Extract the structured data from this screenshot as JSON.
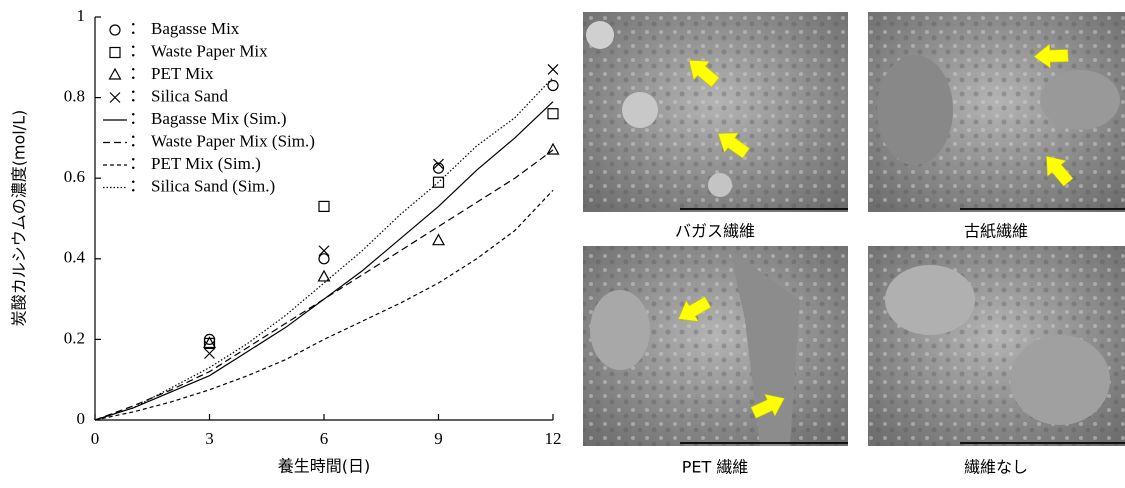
{
  "chart_data": {
    "type": "line",
    "ylabel": "炭酸カルシウムの濃度(mol/L)",
    "xlabel": "養生時間(日)",
    "xlim": [
      0,
      12
    ],
    "xticks": [
      0,
      3,
      6,
      9,
      12
    ],
    "ylim": [
      0,
      1
    ],
    "yticks": [
      0,
      0.2,
      0.4,
      0.6,
      0.8,
      1
    ],
    "legend": "upper left",
    "legend_separator": "：",
    "series": [
      {
        "name": "Bagasse Mix",
        "type": "scatter",
        "marker": "circle",
        "color": "#000000",
        "x": [
          3,
          6,
          9,
          12
        ],
        "values": [
          0.2,
          0.4,
          0.625,
          0.83
        ]
      },
      {
        "name": "Waste Paper Mix",
        "type": "scatter",
        "marker": "square",
        "color": "#000000",
        "x": [
          3,
          6,
          9,
          12
        ],
        "values": [
          0.19,
          0.53,
          0.59,
          0.76
        ]
      },
      {
        "name": "PET Mix",
        "type": "scatter",
        "marker": "triangle",
        "color": "#000000",
        "x": [
          3,
          6,
          9,
          12
        ],
        "values": [
          0.19,
          0.355,
          0.445,
          0.67
        ]
      },
      {
        "name": "Silica Sand",
        "type": "scatter",
        "marker": "cross",
        "color": "#000000",
        "x": [
          3,
          6,
          9,
          12
        ],
        "values": [
          0.165,
          0.42,
          0.635,
          0.87
        ]
      },
      {
        "name": "Bagasse Mix (Sim.)",
        "type": "line",
        "dash": "solid",
        "color": "#000000",
        "x": [
          0,
          1,
          2,
          3,
          4,
          5,
          6,
          7,
          8,
          9,
          10,
          11,
          12
        ],
        "values": [
          0,
          0.03,
          0.07,
          0.11,
          0.17,
          0.23,
          0.3,
          0.37,
          0.45,
          0.53,
          0.62,
          0.7,
          0.79
        ]
      },
      {
        "name": "Waste Paper Mix (Sim.)",
        "type": "line",
        "dash": "dashed",
        "color": "#000000",
        "x": [
          0,
          1,
          2,
          3,
          4,
          5,
          6,
          7,
          8,
          9,
          10,
          11,
          12
        ],
        "values": [
          0,
          0.035,
          0.075,
          0.12,
          0.18,
          0.24,
          0.3,
          0.36,
          0.42,
          0.48,
          0.54,
          0.6,
          0.67
        ]
      },
      {
        "name": "PET Mix (Sim.)",
        "type": "line",
        "dash": "short-dashed",
        "color": "#000000",
        "x": [
          0,
          1,
          2,
          3,
          4,
          5,
          6,
          7,
          8,
          9,
          10,
          11,
          12
        ],
        "values": [
          0,
          0.02,
          0.045,
          0.075,
          0.11,
          0.15,
          0.2,
          0.245,
          0.29,
          0.34,
          0.4,
          0.47,
          0.57
        ]
      },
      {
        "name": "Silica Sand (Sim.)",
        "type": "line",
        "dash": "dotted",
        "color": "#000000",
        "x": [
          0,
          1,
          2,
          3,
          4,
          5,
          6,
          7,
          8,
          9,
          10,
          11,
          12
        ],
        "values": [
          0,
          0.03,
          0.08,
          0.13,
          0.19,
          0.26,
          0.34,
          0.42,
          0.51,
          0.59,
          0.68,
          0.75,
          0.85
        ]
      }
    ]
  },
  "images": [
    {
      "caption": "バガス繊維"
    },
    {
      "caption": "古紙繊維"
    },
    {
      "caption": "PET 繊維"
    },
    {
      "caption": "繊維なし"
    }
  ]
}
